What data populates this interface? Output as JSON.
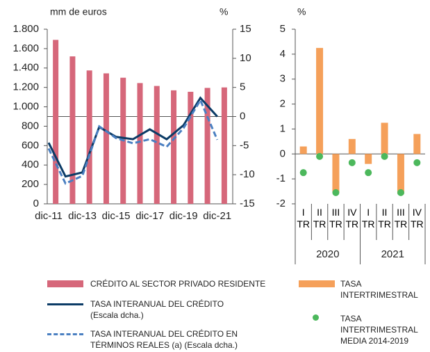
{
  "chart_data": [
    {
      "type": "bar_line",
      "y_label": "mm de euros",
      "y2_label": "%",
      "categories": [
        "dic-11",
        null,
        "dic-13",
        null,
        "dic-15",
        null,
        "dic-17",
        null,
        "dic-19",
        null,
        "dic-21"
      ],
      "series": [
        {
          "name": "CRÉDITO AL SECTOR PRIVADO RESIDENTE",
          "kind": "bar",
          "color": "#d6677a",
          "axis": "y",
          "values": [
            1690,
            1520,
            1375,
            1345,
            1300,
            1245,
            1215,
            1170,
            1155,
            1195,
            1200
          ]
        },
        {
          "name": "TASA INTERANUAL DEL CRÉDITO (Escala dcha.)",
          "kind": "line",
          "color": "#0b3b66",
          "axis": "y2",
          "values": [
            -4.5,
            -10.3,
            -9.6,
            -1.8,
            -3.5,
            -3.9,
            -2.2,
            -3.9,
            -1.5,
            3.2,
            0.0
          ]
        },
        {
          "name": "TASA INTERANUAL DEL CRÉDITO EN TÉRMINOS REALES (a) (Escala dcha.)",
          "kind": "dashed-line",
          "color": "#4a7fc1",
          "axis": "y2",
          "values": [
            -5.5,
            -11.5,
            -10.2,
            -1.7,
            -3.7,
            -4.6,
            -3.9,
            -5.2,
            -2.0,
            2.8,
            -4.0
          ]
        }
      ],
      "ylim": [
        0,
        1800
      ],
      "yticks": [
        0,
        {
          "value": 200,
          "label": "200"
        },
        400,
        600,
        800,
        {
          "value": 1000,
          "label": "1.000"
        },
        {
          "value": 1200,
          "label": "1.200"
        },
        {
          "value": 1400,
          "label": "1.400"
        },
        {
          "value": 1600,
          "label": "1.600"
        },
        {
          "value": 1800,
          "label": "1.800"
        }
      ],
      "y2lim": [
        -15,
        15
      ],
      "y2ticks": [
        -15,
        -10,
        -5,
        0,
        5,
        10,
        15
      ]
    },
    {
      "type": "bar_dot",
      "y_label": "%",
      "categories": [
        "I TR",
        "II TR",
        "III TR",
        "IV TR",
        "I TR",
        "II TR",
        "III TR",
        "IV TR"
      ],
      "years": [
        "2020",
        "2021"
      ],
      "series": [
        {
          "name": "TASA INTERTRIMESTRAL",
          "kind": "bar",
          "color": "#f5a05a",
          "values": [
            0.3,
            4.25,
            -1.55,
            0.6,
            -0.4,
            1.25,
            -1.6,
            0.8
          ]
        },
        {
          "name": "TASA INTERTRIMESTRAL MEDIA 2014-2019",
          "kind": "dot",
          "color": "#4cb85c",
          "values": [
            -0.75,
            -0.1,
            -1.55,
            -0.35,
            -0.75,
            -0.1,
            -1.55,
            -0.35
          ]
        }
      ],
      "ylim": [
        -2,
        5
      ],
      "yticks": [
        -2,
        -1,
        0,
        1,
        2,
        3,
        4,
        5
      ]
    }
  ]
}
